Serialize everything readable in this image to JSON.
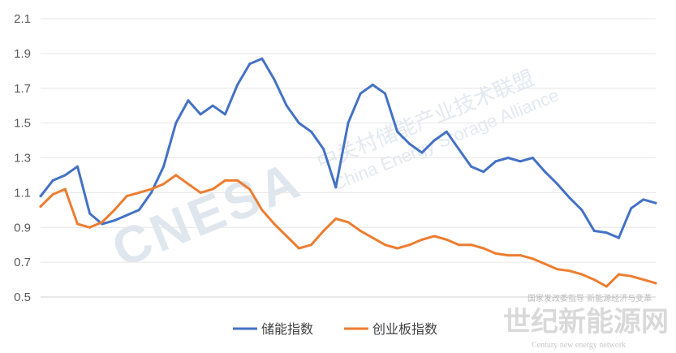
{
  "chart_data": {
    "type": "line",
    "title": "",
    "xlabel": "",
    "ylabel": "",
    "ylim": [
      0.5,
      2.1
    ],
    "yticks": [
      "0.5",
      "0.7",
      "0.9",
      "1.1",
      "1.3",
      "1.5",
      "1.7",
      "1.9",
      "2.1"
    ],
    "grid": true,
    "legend_position": "bottom",
    "x": [
      0,
      2,
      4,
      6,
      8,
      10,
      12,
      14,
      16,
      18,
      20,
      22,
      24,
      26,
      28,
      30,
      32,
      34,
      36,
      38,
      40,
      42,
      44,
      46,
      48,
      50,
      52,
      54,
      56,
      58,
      60,
      62,
      64,
      66,
      68,
      70,
      72,
      74,
      76,
      78,
      80,
      82,
      84,
      86,
      88,
      90,
      92,
      94,
      96,
      98,
      100
    ],
    "series": [
      {
        "name": "储能指数",
        "color": "#4472C4",
        "values": [
          1.08,
          1.17,
          1.2,
          1.25,
          0.98,
          0.92,
          0.94,
          0.97,
          1.0,
          1.1,
          1.25,
          1.5,
          1.63,
          1.55,
          1.6,
          1.55,
          1.72,
          1.84,
          1.87,
          1.75,
          1.6,
          1.5,
          1.45,
          1.35,
          1.13,
          1.5,
          1.67,
          1.72,
          1.67,
          1.45,
          1.38,
          1.33,
          1.4,
          1.45,
          1.35,
          1.25,
          1.22,
          1.28,
          1.3,
          1.28,
          1.3,
          1.22,
          1.15,
          1.07,
          1.0,
          0.88,
          0.87,
          0.84,
          1.01,
          1.06,
          1.04
        ]
      },
      {
        "name": "创业板指数",
        "color": "#ED7D31",
        "values": [
          1.02,
          1.09,
          1.12,
          0.92,
          0.9,
          0.93,
          1.0,
          1.08,
          1.1,
          1.12,
          1.15,
          1.2,
          1.15,
          1.1,
          1.12,
          1.17,
          1.17,
          1.12,
          1.0,
          0.92,
          0.85,
          0.78,
          0.8,
          0.88,
          0.95,
          0.93,
          0.88,
          0.84,
          0.8,
          0.78,
          0.8,
          0.83,
          0.85,
          0.83,
          0.8,
          0.8,
          0.78,
          0.75,
          0.74,
          0.74,
          0.72,
          0.69,
          0.66,
          0.65,
          0.63,
          0.6,
          0.56,
          0.63,
          0.62,
          0.6,
          0.58
        ]
      }
    ]
  },
  "watermarks": {
    "cnesa": "CNESA",
    "cn_name": "中关村储能产业技术联盟",
    "en_name": "China Energy Storage Alliance",
    "sub_caption": "国家发改委指导 新能源经济与变革",
    "brand_cn": "世纪新能源网",
    "brand_en": "Century new energy network"
  }
}
